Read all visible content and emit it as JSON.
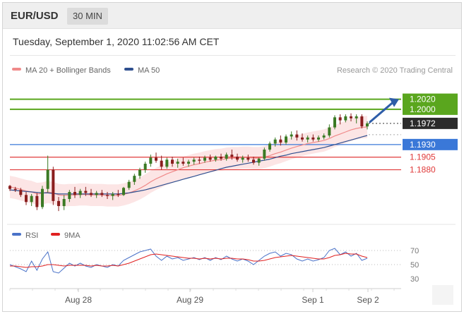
{
  "header": {
    "symbol": "EUR/USD",
    "timeframe": "30 MIN"
  },
  "datetime": "Tuesday, September 1, 2020 11:02:56 AM CET",
  "chart_data": [
    {
      "type": "candlestick",
      "legend": [
        {
          "name": "MA 20 + Bollinger Bands",
          "color": "#f08a8a"
        },
        {
          "name": "MA 50",
          "color": "#2f4f8f"
        }
      ],
      "credit": "Research © 2020 Trading Central",
      "x_ticks": [
        "Aug 28",
        "Aug 29",
        "Sep 1",
        "Sep 2"
      ],
      "y_range": [
        1.178,
        1.206
      ],
      "levels": [
        {
          "value": 1.202,
          "label": "1.2020",
          "color": "#5aa61e",
          "kind": "resistance"
        },
        {
          "value": 1.2,
          "label": "1.2000",
          "color": "#5aa61e",
          "kind": "resistance"
        },
        {
          "value": 1.1972,
          "label": "1.1972",
          "color": "#2b2b2b",
          "kind": "last-price"
        },
        {
          "value": 1.193,
          "label": "1.1930",
          "color": "#3a78d8",
          "kind": "pivot"
        },
        {
          "value": 1.1905,
          "label": "1.1905",
          "color": "#e03a3a",
          "kind": "support"
        },
        {
          "value": 1.188,
          "label": "1.1880",
          "color": "#e03a3a",
          "kind": "support"
        }
      ],
      "forecast_arrow": {
        "from": 1.1975,
        "to": 1.202,
        "color": "#2e5da8"
      },
      "candles": [
        [
          1.1848,
          1.185,
          1.1838,
          1.1842
        ],
        [
          1.1842,
          1.1846,
          1.1836,
          1.184
        ],
        [
          1.184,
          1.1844,
          1.1826,
          1.183
        ],
        [
          1.183,
          1.1836,
          1.181,
          1.1816
        ],
        [
          1.1816,
          1.1832,
          1.1808,
          1.1828
        ],
        [
          1.1828,
          1.1834,
          1.18,
          1.1806
        ],
        [
          1.1806,
          1.1848,
          1.1802,
          1.1842
        ],
        [
          1.1842,
          1.1908,
          1.1835,
          1.188
        ],
        [
          1.188,
          1.1886,
          1.181,
          1.1818
        ],
        [
          1.1818,
          1.1826,
          1.1798,
          1.1808
        ],
        [
          1.1808,
          1.183,
          1.18,
          1.1822
        ],
        [
          1.1822,
          1.184,
          1.1816,
          1.1836
        ],
        [
          1.1836,
          1.1846,
          1.1824,
          1.183
        ],
        [
          1.183,
          1.1842,
          1.1824,
          1.1838
        ],
        [
          1.1838,
          1.1846,
          1.1828,
          1.1834
        ],
        [
          1.1834,
          1.1842,
          1.1826,
          1.183
        ],
        [
          1.183,
          1.1838,
          1.1824,
          1.1834
        ],
        [
          1.1834,
          1.184,
          1.1826,
          1.183
        ],
        [
          1.183,
          1.1836,
          1.1822,
          1.1828
        ],
        [
          1.1828,
          1.1836,
          1.182,
          1.1832
        ],
        [
          1.1832,
          1.184,
          1.1826,
          1.183
        ],
        [
          1.183,
          1.1846,
          1.1828,
          1.1844
        ],
        [
          1.1844,
          1.186,
          1.184,
          1.1856
        ],
        [
          1.1856,
          1.1872,
          1.185,
          1.1868
        ],
        [
          1.1868,
          1.1884,
          1.1862,
          1.188
        ],
        [
          1.188,
          1.1896,
          1.1874,
          1.1892
        ],
        [
          1.1892,
          1.191,
          1.1886,
          1.1904
        ],
        [
          1.1904,
          1.1914,
          1.1894,
          1.1898
        ],
        [
          1.1898,
          1.1908,
          1.188,
          1.1886
        ],
        [
          1.1886,
          1.1904,
          1.1882,
          1.19
        ],
        [
          1.19,
          1.1906,
          1.1886,
          1.1892
        ],
        [
          1.1892,
          1.1902,
          1.1884,
          1.1896
        ],
        [
          1.1896,
          1.1904,
          1.1888,
          1.1892
        ],
        [
          1.1892,
          1.19,
          1.1886,
          1.1896
        ],
        [
          1.1896,
          1.1904,
          1.189,
          1.19
        ],
        [
          1.19,
          1.1906,
          1.1892,
          1.1898
        ],
        [
          1.1898,
          1.1908,
          1.1894,
          1.1904
        ],
        [
          1.1904,
          1.191,
          1.1896,
          1.19
        ],
        [
          1.19,
          1.1908,
          1.1896,
          1.1906
        ],
        [
          1.1906,
          1.1912,
          1.1898,
          1.1902
        ],
        [
          1.1902,
          1.1914,
          1.1898,
          1.191
        ],
        [
          1.191,
          1.192,
          1.19,
          1.1906
        ],
        [
          1.1906,
          1.1912,
          1.1896,
          1.19
        ],
        [
          1.19,
          1.1908,
          1.1894,
          1.1904
        ],
        [
          1.1904,
          1.191,
          1.1896,
          1.19
        ],
        [
          1.19,
          1.1906,
          1.189,
          1.1894
        ],
        [
          1.1894,
          1.1904,
          1.1888,
          1.1902
        ],
        [
          1.1902,
          1.1924,
          1.1898,
          1.192
        ],
        [
          1.192,
          1.1936,
          1.1916,
          1.1932
        ],
        [
          1.1932,
          1.1944,
          1.1926,
          1.194
        ],
        [
          1.194,
          1.1948,
          1.1928,
          1.1934
        ],
        [
          1.1934,
          1.195,
          1.193,
          1.1946
        ],
        [
          1.1946,
          1.1956,
          1.194,
          1.195
        ],
        [
          1.195,
          1.1958,
          1.1938,
          1.1944
        ],
        [
          1.1944,
          1.1952,
          1.1936,
          1.194
        ],
        [
          1.194,
          1.1948,
          1.1934,
          1.1944
        ],
        [
          1.1944,
          1.195,
          1.1936,
          1.194
        ],
        [
          1.194,
          1.1948,
          1.1936,
          1.1944
        ],
        [
          1.1944,
          1.1952,
          1.194,
          1.1948
        ],
        [
          1.1948,
          1.197,
          1.1944,
          1.1964
        ],
        [
          1.1964,
          1.1988,
          1.196,
          1.1984
        ],
        [
          1.1984,
          1.199,
          1.197,
          1.1978
        ],
        [
          1.1978,
          1.199,
          1.1974,
          1.1986
        ],
        [
          1.1986,
          1.1992,
          1.1976,
          1.1982
        ],
        [
          1.1982,
          1.199,
          1.1972,
          1.1986
        ],
        [
          1.1986,
          1.199,
          1.1962,
          1.1966
        ],
        [
          1.1966,
          1.1976,
          1.196,
          1.1972
        ]
      ],
      "ma20": [
        1.1846,
        1.1844,
        1.1841,
        1.1838,
        1.1836,
        1.1832,
        1.1833,
        1.1836,
        1.1834,
        1.183,
        1.1829,
        1.183,
        1.183,
        1.1831,
        1.1831,
        1.183,
        1.183,
        1.183,
        1.1829,
        1.1829,
        1.1829,
        1.1831,
        1.1834,
        1.1838,
        1.1843,
        1.1849,
        1.1856,
        1.1862,
        1.1867,
        1.1872,
        1.1876,
        1.188,
        1.1884,
        1.1887,
        1.189,
        1.1892,
        1.1895,
        1.1897,
        1.1899,
        1.19,
        1.1902,
        1.1903,
        1.1903,
        1.1904,
        1.1904,
        1.1903,
        1.1903,
        1.1905,
        1.1908,
        1.1912,
        1.1915,
        1.1919,
        1.1923,
        1.1926,
        1.1929,
        1.1932,
        1.1934,
        1.1936,
        1.1938,
        1.1942,
        1.1947,
        1.1951,
        1.1955,
        1.1959,
        1.1962,
        1.1964,
        1.1965
      ],
      "ma50": [
        1.184,
        1.1839,
        1.1838,
        1.1837,
        1.1836,
        1.1835,
        1.1834,
        1.1834,
        1.1833,
        1.1832,
        1.1832,
        1.1832,
        1.1832,
        1.1832,
        1.1832,
        1.1832,
        1.1832,
        1.1832,
        1.1832,
        1.1832,
        1.1832,
        1.1833,
        1.1834,
        1.1836,
        1.1838,
        1.184,
        1.1843,
        1.1846,
        1.1849,
        1.1852,
        1.1855,
        1.1858,
        1.1861,
        1.1864,
        1.1867,
        1.187,
        1.1873,
        1.1876,
        1.1879,
        1.1882,
        1.1885,
        1.1887,
        1.1889,
        1.1891,
        1.1893,
        1.1895,
        1.1897,
        1.1899,
        1.1901,
        1.1904,
        1.1907,
        1.1909,
        1.1912,
        1.1914,
        1.1916,
        1.1918,
        1.192,
        1.1922,
        1.1924,
        1.1927,
        1.193,
        1.1933,
        1.1936,
        1.1939,
        1.1942,
        1.1945,
        1.1948
      ],
      "bb_width": 0.0022
    },
    {
      "type": "line",
      "legend": [
        {
          "name": "RSI",
          "color": "#4a72c8"
        },
        {
          "name": "9MA",
          "color": "#e02020"
        }
      ],
      "y_ticks": [
        70,
        50,
        30
      ],
      "y_range": [
        20,
        80
      ],
      "rsi": [
        50,
        47,
        44,
        40,
        55,
        42,
        58,
        68,
        40,
        38,
        45,
        52,
        48,
        52,
        48,
        46,
        50,
        48,
        46,
        50,
        48,
        56,
        60,
        64,
        68,
        70,
        72,
        62,
        56,
        62,
        58,
        60,
        56,
        58,
        60,
        57,
        60,
        56,
        60,
        57,
        62,
        58,
        55,
        58,
        55,
        50,
        56,
        62,
        66,
        68,
        62,
        66,
        64,
        58,
        55,
        58,
        55,
        57,
        60,
        70,
        73,
        64,
        68,
        62,
        66,
        56,
        59
      ],
      "rsi_ma": [
        48,
        48,
        47,
        46,
        47,
        47,
        48,
        50,
        50,
        49,
        48,
        49,
        49,
        49,
        49,
        48,
        49,
        48,
        48,
        49,
        48,
        50,
        52,
        55,
        58,
        61,
        64,
        65,
        64,
        63,
        62,
        61,
        60,
        59,
        59,
        58,
        59,
        58,
        59,
        58,
        59,
        59,
        58,
        58,
        57,
        55,
        55,
        56,
        58,
        60,
        61,
        62,
        63,
        62,
        61,
        60,
        59,
        58,
        58,
        60,
        63,
        64,
        66,
        65,
        65,
        62,
        60
      ]
    }
  ]
}
